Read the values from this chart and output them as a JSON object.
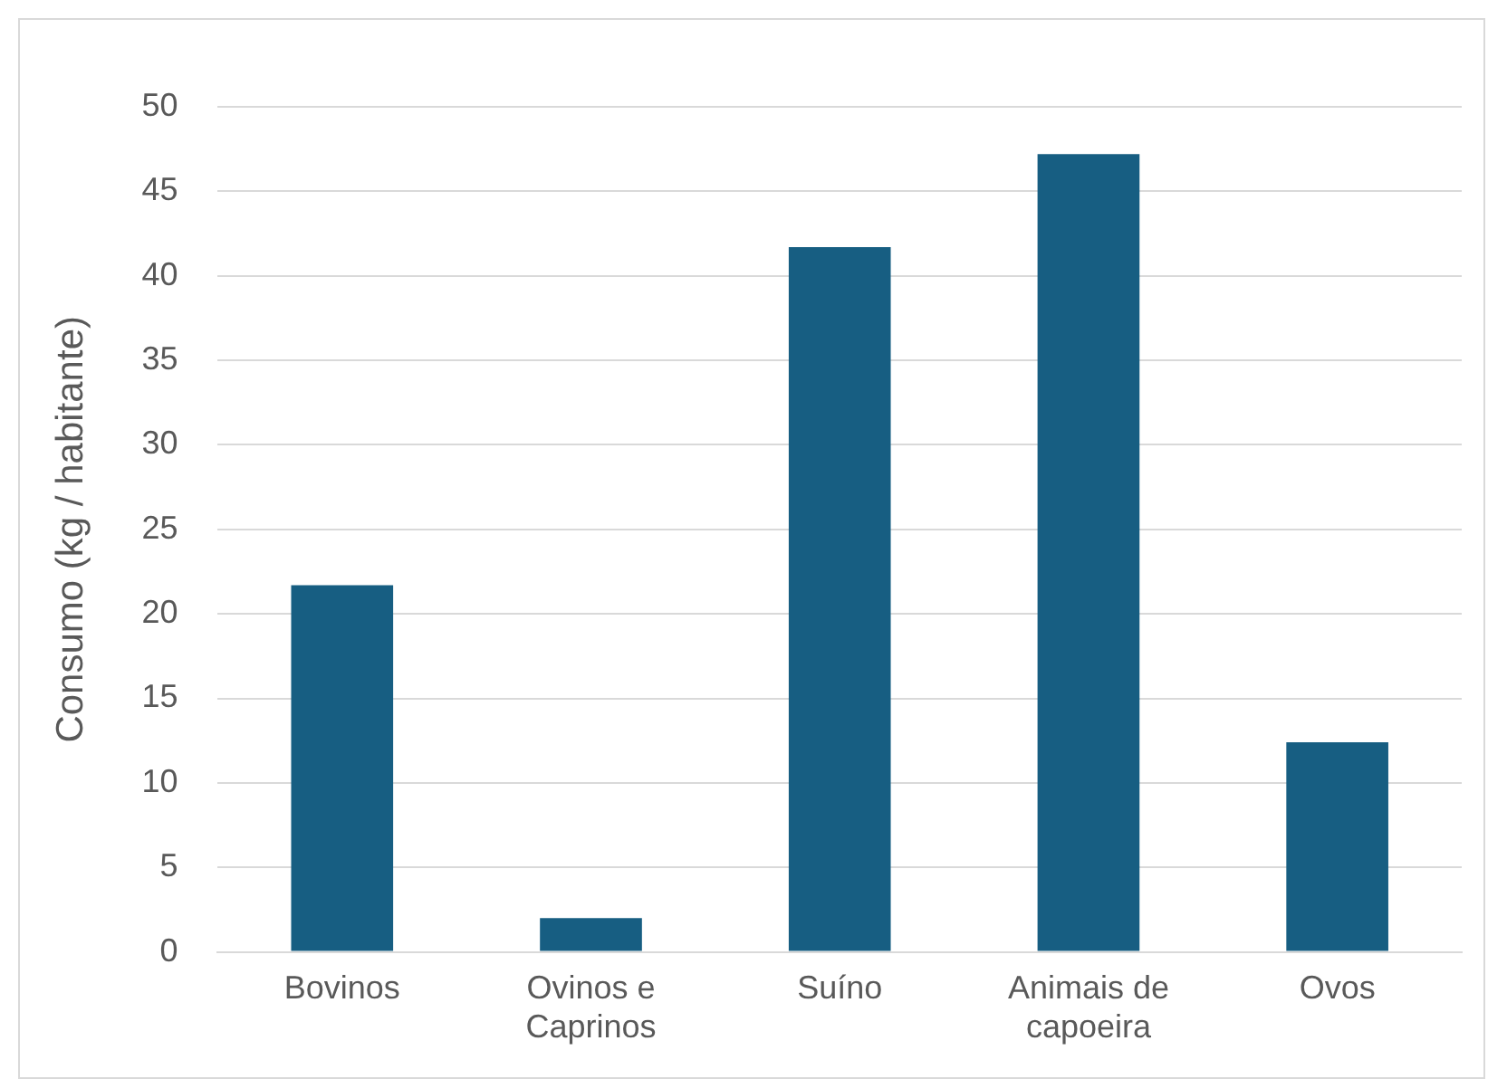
{
  "chart_data": {
    "type": "bar",
    "ylabel": "Consumo (kg / habitante)",
    "categories": [
      "Bovinos",
      "Ovinos e Caprinos",
      "Suíno",
      "Animais de capoeira",
      "Ovos"
    ],
    "values": [
      21.7,
      2.0,
      41.7,
      47.2,
      12.4
    ],
    "color": "#175e82",
    "ylim": [
      0,
      50
    ],
    "yticks": [
      0,
      5,
      10,
      15,
      20,
      25,
      30,
      35,
      40,
      45,
      50
    ],
    "grid": "y",
    "legend": false
  }
}
